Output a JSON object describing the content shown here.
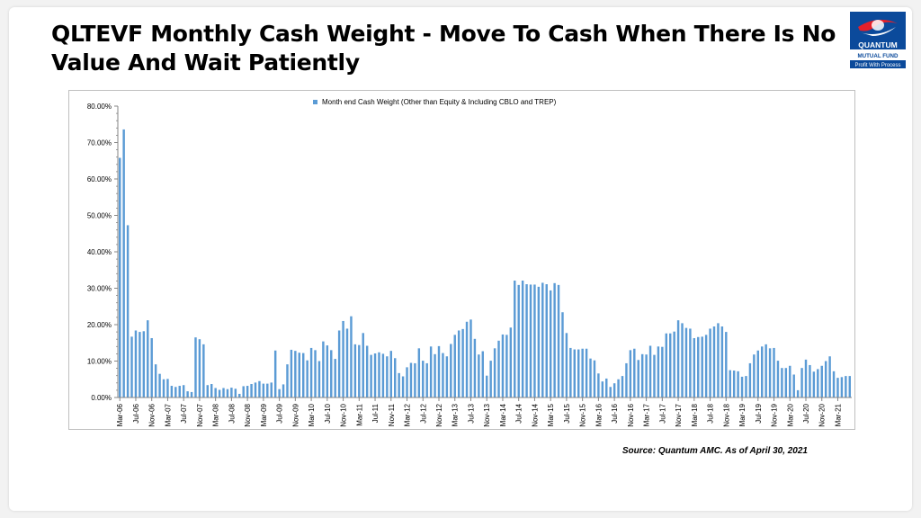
{
  "slide": {
    "title": "QLTEVF Monthly Cash Weight - Move To Cash When There Is No Value And Wait Patiently",
    "source": "Source: Quantum AMC. As of  April 30, 2021"
  },
  "logo": {
    "brand": "QUANTUM",
    "sub": "MUTUAL FUND",
    "tagline": "Profit With Process"
  },
  "colors": {
    "bar": "#5b9bd5",
    "axis": "#868686",
    "text": "#000000"
  },
  "chart_data": {
    "type": "bar",
    "title": "",
    "xlabel": "",
    "ylabel": "",
    "ylim": [
      0,
      80
    ],
    "y_ticks": [
      "0.00%",
      "10.00%",
      "20.00%",
      "30.00%",
      "40.00%",
      "50.00%",
      "60.00%",
      "70.00%",
      "80.00%"
    ],
    "legend": {
      "position": "top-center"
    },
    "grid": false,
    "x_tick_labels": [
      "Mar-06",
      "Jul-06",
      "Nov-06",
      "Mar-07",
      "Jul-07",
      "Nov-07",
      "Mar-08",
      "Jul-08",
      "Nov-08",
      "Mar-09",
      "Jul-09",
      "Nov-09",
      "Mar-10",
      "Jul-10",
      "Nov-10",
      "Mar-11",
      "Jul-11",
      "Nov-11",
      "Mar-12",
      "Jul-12",
      "Nov-12",
      "Mar-13",
      "Jul-13",
      "Nov-13",
      "Mar-14",
      "Jul-14",
      "Nov-14",
      "Mar-15",
      "Jul-15",
      "Nov-15",
      "Mar-16",
      "Jul-16",
      "Nov-16",
      "Mar-17",
      "Jul-17",
      "Nov-17",
      "Mar-18",
      "Jul-18",
      "Nov-18",
      "Mar-19",
      "Jul-19",
      "Nov-19",
      "Mar-20",
      "Jul-20",
      "Nov-20",
      "Mar-21"
    ],
    "series": [
      {
        "name": "Month end Cash Weight (Other than Equity & Including CBLO and TREP)",
        "values": [
          65.8,
          73.6,
          47.3,
          16.7,
          18.4,
          18.0,
          18.2,
          21.2,
          16.3,
          9.1,
          6.5,
          5.0,
          5.1,
          3.2,
          2.9,
          3.2,
          3.4,
          1.7,
          1.5,
          16.5,
          16.0,
          14.6,
          3.4,
          3.7,
          2.6,
          2.1,
          2.6,
          2.3,
          2.7,
          2.4,
          1.0,
          3.1,
          3.2,
          3.7,
          4.1,
          4.5,
          3.8,
          3.8,
          4.1,
          12.9,
          2.3,
          3.6,
          9.1,
          13.1,
          12.8,
          12.3,
          12.2,
          10.2,
          13.6,
          13.0,
          10.0,
          15.4,
          14.3,
          13.0,
          10.6,
          18.4,
          21.0,
          18.9,
          22.3,
          14.6,
          14.4,
          17.7,
          14.2,
          11.7,
          12.1,
          12.4,
          12.0,
          11.3,
          12.8,
          10.8,
          6.7,
          5.8,
          8.3,
          9.5,
          9.4,
          13.5,
          10.1,
          9.4,
          14.0,
          11.9,
          14.1,
          12.2,
          11.3,
          14.7,
          17.2,
          18.4,
          18.8,
          20.8,
          21.4,
          16.1,
          11.8,
          12.7,
          6.0,
          10.1,
          13.5,
          15.6,
          17.3,
          17.2,
          19.2,
          32.1,
          30.9,
          32.1,
          31.1,
          31.0,
          31.0,
          30.4,
          31.5,
          31.1,
          29.4,
          31.4,
          30.9,
          23.4,
          17.7,
          13.6,
          13.2,
          13.2,
          13.4,
          13.4,
          10.7,
          10.2,
          6.6,
          4.4,
          5.2,
          2.9,
          3.9,
          5.0,
          5.9,
          9.4,
          13.0,
          13.4,
          10.3,
          11.9,
          11.8,
          14.2,
          11.7,
          14.0,
          13.9,
          17.6,
          17.6,
          18.1,
          21.2,
          20.4,
          19.1,
          18.9,
          16.3,
          16.6,
          16.7,
          17.2,
          18.9,
          19.5,
          20.4,
          19.5,
          18.0,
          7.5,
          7.4,
          7.2,
          5.7,
          5.9,
          9.4,
          11.8,
          12.9,
          14.0,
          14.6,
          13.5,
          13.6,
          10.1,
          8.1,
          8.1,
          8.7,
          6.3,
          2.0,
          8.1,
          10.4,
          8.9,
          7.1,
          7.8,
          8.7,
          10.0,
          11.3,
          7.2,
          5.4,
          5.6,
          5.9,
          5.9
        ]
      }
    ]
  }
}
